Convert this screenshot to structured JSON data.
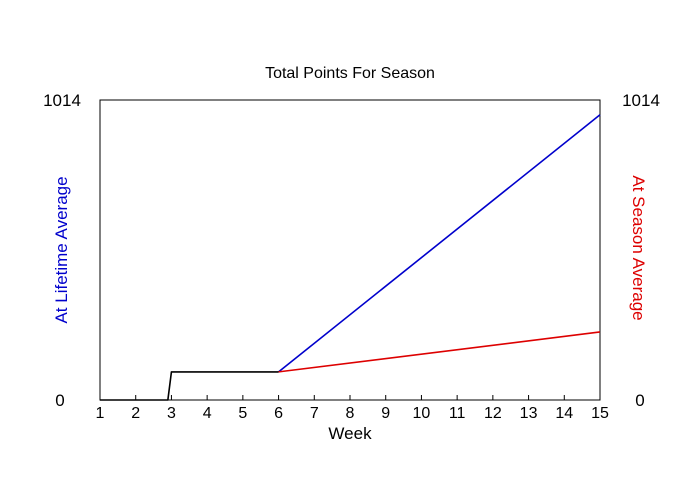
{
  "chart_data": {
    "type": "line",
    "title": "Total Points For Season",
    "xlabel": "Week",
    "ylabel_left": "At Lifetime Average",
    "ylabel_right": "At Season Average",
    "xlim": [
      1,
      15
    ],
    "ylim": [
      0,
      1014
    ],
    "x_ticks": [
      "1",
      "2",
      "3",
      "4",
      "5",
      "6",
      "7",
      "8",
      "9",
      "10",
      "11",
      "12",
      "13",
      "14",
      "15"
    ],
    "y_tick_labels_left": [
      "0",
      "1014"
    ],
    "y_tick_labels_right": [
      "0",
      "1014"
    ],
    "colors": {
      "actual": "#000000",
      "lifetime": "#0000cc",
      "season": "#dd0000"
    },
    "series": [
      {
        "key": "actual",
        "x": [
          1,
          2.9,
          3,
          4,
          5,
          6
        ],
        "y": [
          0,
          0,
          95,
          95,
          95,
          95
        ]
      },
      {
        "key": "lifetime",
        "x": [
          6,
          15
        ],
        "y": [
          95,
          964
        ]
      },
      {
        "key": "season",
        "x": [
          6,
          15
        ],
        "y": [
          95,
          230
        ]
      }
    ]
  }
}
